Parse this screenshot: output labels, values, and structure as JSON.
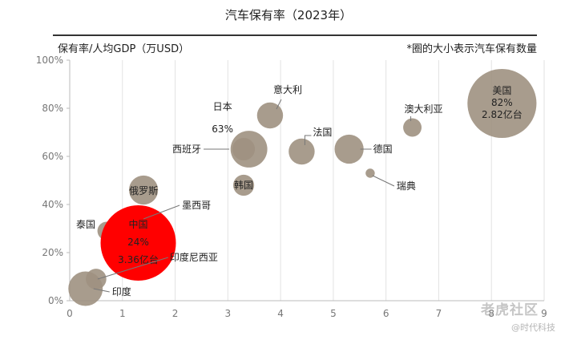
{
  "chart_data": {
    "type": "scatter",
    "title": "汽车保有率（2023年）",
    "ylabel": "保有率/人均GDP（万USD）",
    "note": "*圈的大小表示汽车保有数量",
    "xlim": [
      0,
      9
    ],
    "ylim": [
      0,
      100
    ],
    "x_ticks": [
      "0",
      "1",
      "2",
      "3",
      "4",
      "5",
      "6",
      "7",
      "8",
      "9"
    ],
    "y_ticks": [
      "0%",
      "20%",
      "40%",
      "60%",
      "80%",
      "100%"
    ],
    "grid": "vertical",
    "colors": {
      "bubble": "#9e9181",
      "highlight": "#ff0000",
      "axis": "#bbbbbb",
      "rule": "#333333"
    },
    "points": [
      {
        "name": "美国",
        "x": 8.2,
        "y": 82,
        "size": 2.82,
        "label_lines": [
          "美国",
          "82%",
          "2.82亿台"
        ]
      },
      {
        "name": "澳大利亚",
        "x": 6.5,
        "y": 72,
        "size": 0.2,
        "label_lines": [
          "澳大利亚"
        ]
      },
      {
        "name": "意大利",
        "x": 3.8,
        "y": 77,
        "size": 0.4,
        "label_lines": [
          "意大利"
        ]
      },
      {
        "name": "日本",
        "x": 3.4,
        "y": 63,
        "size": 0.8,
        "label_lines": [
          "日本",
          "63%"
        ]
      },
      {
        "name": "西班牙",
        "x": 3.3,
        "y": 63,
        "size": 0.3,
        "label_lines": [
          "西班牙"
        ]
      },
      {
        "name": "法国",
        "x": 4.4,
        "y": 62,
        "size": 0.4,
        "label_lines": [
          "法国"
        ]
      },
      {
        "name": "德国",
        "x": 5.3,
        "y": 63,
        "size": 0.5,
        "label_lines": [
          "德国"
        ]
      },
      {
        "name": "瑞典",
        "x": 5.7,
        "y": 53,
        "size": 0.05,
        "label_lines": [
          "瑞典"
        ]
      },
      {
        "name": "韩国",
        "x": 3.3,
        "y": 48,
        "size": 0.26,
        "label_lines": [
          "韩国"
        ]
      },
      {
        "name": "俄罗斯",
        "x": 1.4,
        "y": 46,
        "size": 0.5,
        "label_lines": [
          "俄罗斯"
        ]
      },
      {
        "name": "墨西哥",
        "x": 1.4,
        "y": 34,
        "size": 0.35,
        "label_lines": [
          "墨西哥"
        ]
      },
      {
        "name": "泰国",
        "x": 0.7,
        "y": 29,
        "size": 0.2,
        "label_lines": [
          "泰国"
        ]
      },
      {
        "name": "中国",
        "x": 1.3,
        "y": 24,
        "size": 3.36,
        "label_lines": [
          "中国",
          "24%",
          "3.36亿台"
        ]
      },
      {
        "name": "印度尼西亚",
        "x": 0.5,
        "y": 9,
        "size": 0.25,
        "label_lines": [
          "印度尼西亚"
        ]
      },
      {
        "name": "印度",
        "x": 0.3,
        "y": 5,
        "size": 0.7,
        "label_lines": [
          "印度"
        ]
      }
    ]
  },
  "watermark": {
    "text": "老虎社区",
    "sub": "@时代科技"
  }
}
